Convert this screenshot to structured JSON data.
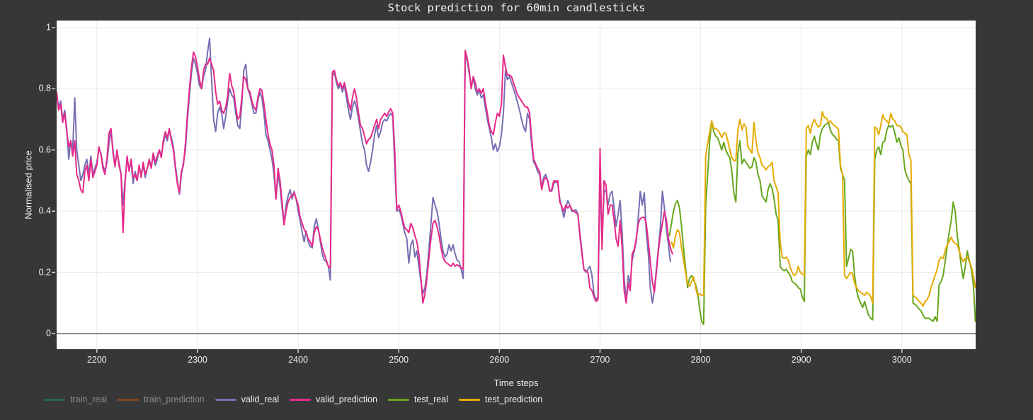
{
  "title": "Stock prediction for 60min candlesticks",
  "colors": {
    "background": "#373737",
    "plot_background": "#ffffff",
    "grid": "#e9e9e9",
    "zero_line": "#8c8c8c",
    "tick_mark": "#d2d2d2",
    "text": "#f0f0f0",
    "muted_text": "#8d8d8d",
    "train_real": "#1b9e77",
    "train_prediction": "#d95f02",
    "valid_real": "#7570b3",
    "valid_prediction": "#e7298a",
    "test_real": "#66a61e",
    "test_prediction": "#e6ab02"
  },
  "chart_data": {
    "type": "line",
    "title": "Stock prediction for 60min candlesticks",
    "xlabel": "Time steps",
    "ylabel": "Normalised price",
    "xlim": [
      2160,
      3073.3
    ],
    "ylim": [
      -0.051,
      1.023
    ],
    "x_ticks": [
      2200,
      2300,
      2400,
      2500,
      2600,
      2700,
      2800,
      2900,
      3000
    ],
    "y_ticks": [
      0,
      0.2,
      0.4,
      0.6,
      0.8,
      1
    ],
    "grid": true,
    "legend_position": "bottom-left",
    "series": [
      {
        "name": "train_real",
        "color": "#1b9e77",
        "muted": true,
        "x_start": null,
        "x_step": null,
        "y": []
      },
      {
        "name": "train_prediction",
        "color": "#d95f02",
        "muted": true,
        "x_start": null,
        "x_step": null,
        "y": []
      },
      {
        "name": "valid_real",
        "color": "#7570b3",
        "muted": false,
        "x_start": 2160,
        "x_step": 2,
        "y": [
          0.78,
          0.74,
          0.76,
          0.7,
          0.73,
          0.67,
          0.57,
          0.63,
          0.6,
          0.77,
          0.6,
          0.55,
          0.5,
          0.52,
          0.55,
          0.57,
          0.52,
          0.58,
          0.52,
          0.54,
          0.56,
          0.6,
          0.59,
          0.55,
          0.53,
          0.56,
          0.62,
          0.665,
          0.6,
          0.55,
          0.59,
          0.56,
          0.52,
          0.42,
          0.5,
          0.57,
          0.54,
          0.56,
          0.49,
          0.53,
          0.5,
          0.545,
          0.52,
          0.55,
          0.51,
          0.54,
          0.56,
          0.55,
          0.58,
          0.55,
          0.57,
          0.6,
          0.58,
          0.62,
          0.65,
          0.63,
          0.665,
          0.64,
          0.61,
          0.55,
          0.5,
          0.455,
          0.52,
          0.56,
          0.6,
          0.7,
          0.78,
          0.85,
          0.9,
          0.88,
          0.85,
          0.81,
          0.8,
          0.84,
          0.86,
          0.92,
          0.965,
          0.83,
          0.7,
          0.66,
          0.72,
          0.74,
          0.72,
          0.67,
          0.71,
          0.76,
          0.8,
          0.78,
          0.77,
          0.72,
          0.68,
          0.67,
          0.75,
          0.86,
          0.88,
          0.8,
          0.78,
          0.75,
          0.72,
          0.72,
          0.76,
          0.79,
          0.77,
          0.72,
          0.65,
          0.63,
          0.6,
          0.57,
          0.52,
          0.44,
          0.52,
          0.48,
          0.41,
          0.36,
          0.42,
          0.45,
          0.47,
          0.44,
          0.465,
          0.44,
          0.4,
          0.37,
          0.33,
          0.3,
          0.335,
          0.3,
          0.285,
          0.28,
          0.35,
          0.375,
          0.345,
          0.3,
          0.26,
          0.24,
          0.235,
          0.22,
          0.175,
          0.84,
          0.855,
          0.82,
          0.8,
          0.815,
          0.79,
          0.81,
          0.77,
          0.73,
          0.7,
          0.74,
          0.76,
          0.74,
          0.7,
          0.66,
          0.62,
          0.6,
          0.55,
          0.53,
          0.56,
          0.6,
          0.65,
          0.68,
          0.64,
          0.66,
          0.69,
          0.7,
          0.695,
          0.71,
          0.72,
          0.71,
          0.55,
          0.4,
          0.405,
          0.39,
          0.36,
          0.33,
          0.31,
          0.23,
          0.29,
          0.305,
          0.25,
          0.27,
          0.22,
          0.17,
          0.13,
          0.15,
          0.2,
          0.28,
          0.36,
          0.445,
          0.42,
          0.4,
          0.36,
          0.31,
          0.27,
          0.25,
          0.26,
          0.29,
          0.27,
          0.29,
          0.26,
          0.24,
          0.235,
          0.21,
          0.18,
          0.91,
          0.89,
          0.85,
          0.81,
          0.835,
          0.8,
          0.78,
          0.795,
          0.77,
          0.78,
          0.74,
          0.7,
          0.67,
          0.64,
          0.6,
          0.62,
          0.595,
          0.61,
          0.65,
          0.72,
          0.86,
          0.83,
          0.84,
          0.82,
          0.8,
          0.78,
          0.755,
          0.73,
          0.7,
          0.675,
          0.66,
          0.72,
          0.7,
          0.62,
          0.56,
          0.55,
          0.53,
          0.52,
          0.48,
          0.51,
          0.52,
          0.5,
          0.47,
          0.465,
          0.49,
          0.5,
          0.49,
          0.44,
          0.41,
          0.38,
          0.41,
          0.435,
          0.42,
          0.4,
          0.4,
          0.405,
          0.39,
          0.33,
          0.27,
          0.21,
          0.2,
          0.21,
          0.22,
          0.19,
          0.13,
          0.11,
          0.12,
          0.52,
          0.3,
          0.46,
          0.47,
          0.42,
          0.455,
          0.465,
          0.41,
          0.35,
          0.39,
          0.435,
          0.33,
          0.18,
          0.105,
          0.19,
          0.16,
          0.24,
          0.27,
          0.3,
          0.38,
          0.465,
          0.42,
          0.46,
          0.33,
          0.26,
          0.15,
          0.1,
          0.14,
          0.21,
          0.28,
          0.35,
          0.465,
          0.41,
          0.34,
          0.29,
          0.235
        ]
      },
      {
        "name": "valid_prediction",
        "color": "#e7298a",
        "muted": false,
        "x_start": 2160,
        "x_step": 2,
        "y": [
          0.79,
          0.73,
          0.75,
          0.69,
          0.72,
          0.66,
          0.61,
          0.63,
          0.58,
          0.63,
          0.52,
          0.5,
          0.47,
          0.46,
          0.53,
          0.55,
          0.5,
          0.57,
          0.51,
          0.53,
          0.55,
          0.61,
          0.585,
          0.54,
          0.52,
          0.57,
          0.655,
          0.67,
          0.59,
          0.545,
          0.6,
          0.55,
          0.52,
          0.33,
          0.49,
          0.58,
          0.53,
          0.57,
          0.51,
          0.52,
          0.5,
          0.55,
          0.51,
          0.56,
          0.52,
          0.54,
          0.57,
          0.54,
          0.59,
          0.56,
          0.58,
          0.6,
          0.575,
          0.63,
          0.66,
          0.64,
          0.67,
          0.63,
          0.6,
          0.54,
          0.49,
          0.46,
          0.53,
          0.55,
          0.62,
          0.72,
          0.8,
          0.87,
          0.92,
          0.905,
          0.87,
          0.83,
          0.8,
          0.86,
          0.88,
          0.88,
          0.9,
          0.88,
          0.86,
          0.79,
          0.75,
          0.76,
          0.73,
          0.72,
          0.74,
          0.78,
          0.85,
          0.81,
          0.79,
          0.74,
          0.7,
          0.71,
          0.77,
          0.84,
          0.83,
          0.8,
          0.79,
          0.76,
          0.74,
          0.73,
          0.77,
          0.8,
          0.795,
          0.75,
          0.7,
          0.65,
          0.62,
          0.6,
          0.55,
          0.44,
          0.54,
          0.5,
          0.43,
          0.355,
          0.4,
          0.43,
          0.445,
          0.45,
          0.46,
          0.44,
          0.42,
          0.38,
          0.36,
          0.34,
          0.33,
          0.31,
          0.3,
          0.285,
          0.33,
          0.35,
          0.34,
          0.31,
          0.28,
          0.26,
          0.24,
          0.22,
          0.215,
          0.855,
          0.86,
          0.83,
          0.81,
          0.82,
          0.8,
          0.82,
          0.79,
          0.755,
          0.73,
          0.77,
          0.8,
          0.77,
          0.72,
          0.68,
          0.67,
          0.645,
          0.62,
          0.635,
          0.64,
          0.66,
          0.68,
          0.7,
          0.67,
          0.7,
          0.71,
          0.72,
          0.71,
          0.725,
          0.735,
          0.72,
          0.6,
          0.405,
          0.42,
          0.4,
          0.37,
          0.345,
          0.34,
          0.33,
          0.36,
          0.345,
          0.32,
          0.3,
          0.26,
          0.18,
          0.1,
          0.13,
          0.18,
          0.25,
          0.31,
          0.36,
          0.37,
          0.35,
          0.32,
          0.28,
          0.25,
          0.235,
          0.23,
          0.225,
          0.22,
          0.23,
          0.22,
          0.225,
          0.22,
          0.215,
          0.21,
          0.925,
          0.9,
          0.86,
          0.8,
          0.84,
          0.82,
          0.79,
          0.8,
          0.785,
          0.8,
          0.76,
          0.72,
          0.68,
          0.66,
          0.65,
          0.69,
          0.72,
          0.71,
          0.75,
          0.91,
          0.87,
          0.845,
          0.845,
          0.84,
          0.82,
          0.8,
          0.78,
          0.77,
          0.76,
          0.75,
          0.74,
          0.74,
          0.72,
          0.64,
          0.57,
          0.555,
          0.54,
          0.53,
          0.47,
          0.5,
          0.51,
          0.5,
          0.465,
          0.47,
          0.5,
          0.495,
          0.5,
          0.43,
          0.415,
          0.4,
          0.42,
          0.41,
          0.42,
          0.405,
          0.4,
          0.395,
          0.39,
          0.32,
          0.26,
          0.21,
          0.205,
          0.2,
          0.15,
          0.14,
          0.12,
          0.105,
          0.11,
          0.605,
          0.275,
          0.5,
          0.485,
          0.39,
          0.42,
          0.42,
          0.37,
          0.31,
          0.285,
          0.37,
          0.28,
          0.14,
          0.1,
          0.165,
          0.14,
          0.26,
          0.275,
          0.31,
          0.36,
          0.375,
          0.38,
          0.38,
          0.36,
          0.3,
          0.235,
          0.17,
          0.135,
          0.2,
          0.27,
          0.32,
          0.36,
          0.4,
          0.37,
          0.31,
          0.28,
          0.26
        ]
      },
      {
        "name": "test_real",
        "color": "#66a61e",
        "muted": false,
        "x_start": 2769,
        "x_step": 2,
        "y": [
          0.32,
          0.36,
          0.4,
          0.425,
          0.435,
          0.41,
          0.35,
          0.28,
          0.215,
          0.15,
          0.18,
          0.19,
          0.175,
          0.16,
          0.135,
          0.08,
          0.04,
          0.03,
          0.42,
          0.52,
          0.63,
          0.695,
          0.66,
          0.645,
          0.64,
          0.62,
          0.6,
          0.625,
          0.6,
          0.585,
          0.575,
          0.53,
          0.46,
          0.43,
          0.59,
          0.63,
          0.555,
          0.57,
          0.56,
          0.55,
          0.54,
          0.545,
          0.575,
          0.56,
          0.52,
          0.5,
          0.45,
          0.44,
          0.43,
          0.47,
          0.49,
          0.475,
          0.44,
          0.39,
          0.37,
          0.22,
          0.21,
          0.205,
          0.21,
          0.2,
          0.19,
          0.17,
          0.165,
          0.16,
          0.15,
          0.145,
          0.12,
          0.105,
          0.58,
          0.6,
          0.585,
          0.625,
          0.645,
          0.62,
          0.6,
          0.65,
          0.67,
          0.68,
          0.685,
          0.69,
          0.665,
          0.65,
          0.645,
          0.635,
          0.63,
          0.54,
          0.52,
          0.5,
          0.22,
          0.245,
          0.275,
          0.27,
          0.19,
          0.14,
          0.115,
          0.1,
          0.085,
          0.105,
          0.08,
          0.06,
          0.05,
          0.045,
          0.57,
          0.6,
          0.61,
          0.585,
          0.625,
          0.63,
          0.665,
          0.68,
          0.675,
          0.68,
          0.655,
          0.625,
          0.64,
          0.615,
          0.6,
          0.535,
          0.515,
          0.5,
          0.49,
          0.1,
          0.095,
          0.09,
          0.08,
          0.075,
          0.06,
          0.05,
          0.05,
          0.05,
          0.045,
          0.04,
          0.055,
          0.04,
          0.16,
          0.17,
          0.19,
          0.235,
          0.285,
          0.33,
          0.37,
          0.43,
          0.4,
          0.32,
          0.275,
          0.22,
          0.18,
          0.22,
          0.27,
          0.24,
          0.21,
          0.16,
          0.04
        ]
      },
      {
        "name": "test_prediction",
        "color": "#e6ab02",
        "muted": false,
        "x_start": 2771,
        "x_step": 2,
        "y": [
          0.3,
          0.28,
          0.32,
          0.34,
          0.33,
          0.28,
          0.24,
          0.2,
          0.165,
          0.155,
          0.17,
          0.185,
          0.15,
          0.125,
          0.13,
          0.125,
          0.125,
          0.58,
          0.62,
          0.66,
          0.695,
          0.67,
          0.67,
          0.665,
          0.655,
          0.64,
          0.655,
          0.655,
          0.63,
          0.6,
          0.575,
          0.565,
          0.565,
          0.665,
          0.7,
          0.665,
          0.685,
          0.675,
          0.61,
          0.6,
          0.59,
          0.69,
          0.63,
          0.59,
          0.575,
          0.55,
          0.545,
          0.535,
          0.545,
          0.55,
          0.56,
          0.5,
          0.48,
          0.46,
          0.3,
          0.25,
          0.245,
          0.25,
          0.24,
          0.215,
          0.2,
          0.19,
          0.195,
          0.22,
          0.2,
          0.195,
          0.19,
          0.67,
          0.68,
          0.655,
          0.685,
          0.7,
          0.685,
          0.675,
          0.68,
          0.725,
          0.705,
          0.705,
          0.69,
          0.695,
          0.685,
          0.68,
          0.675,
          0.665,
          0.55,
          0.52,
          0.19,
          0.18,
          0.19,
          0.2,
          0.195,
          0.165,
          0.15,
          0.14,
          0.135,
          0.13,
          0.125,
          0.135,
          0.13,
          0.12,
          0.1,
          0.675,
          0.67,
          0.65,
          0.68,
          0.715,
          0.7,
          0.695,
          0.685,
          0.72,
          0.7,
          0.695,
          0.68,
          0.68,
          0.675,
          0.66,
          0.655,
          0.65,
          0.585,
          0.565,
          0.125,
          0.12,
          0.115,
          0.105,
          0.1,
          0.09,
          0.105,
          0.11,
          0.125,
          0.15,
          0.17,
          0.19,
          0.21,
          0.24,
          0.25,
          0.245,
          0.27,
          0.29,
          0.3,
          0.315,
          0.3,
          0.295,
          0.29,
          0.27,
          0.25,
          0.235,
          0.245,
          0.25,
          0.235,
          0.22,
          0.19,
          0.15
        ]
      }
    ]
  }
}
